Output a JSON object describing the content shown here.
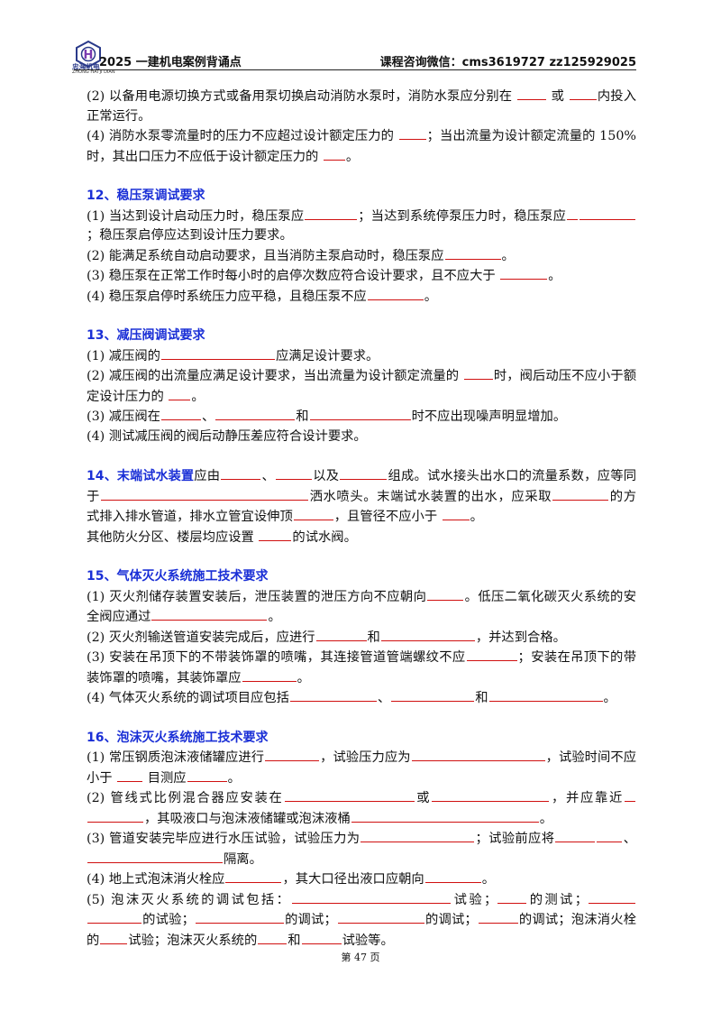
{
  "header": {
    "logo_text": "忠海机电",
    "logo_sub": "ZHONG HAI JI DIAN",
    "title": "2025 一建机电案例背诵点",
    "contact": "课程咨询微信：cms3619727   zz125929025"
  },
  "content": {
    "s11": {
      "l2a": "(2) 以备用电源切换方式或备用泵切换启动消防水泵时，消防水泵应分别在",
      "l2b": "或",
      "l2c": "内投入正常运行。",
      "l4a": "(4) 消防水泵零流量时的压力不应超过设计额定压力的",
      "l4b": "；当出流量为设计额定流量的 150%时，其出口压力不应低于设计额定压力的",
      "l4c": "。"
    },
    "s12": {
      "title": "12、稳压泵调试要求",
      "l1a": "(1) 当达到设计启动压力时，稳压泵应",
      "l1b": "；当达到系统停泵压力时，稳压泵应",
      "l1c": "；稳压泵启停应达到设计压力要求。",
      "l2a": "(2) 能满足系统自动启动要求，且当消防主泵启动时，稳压泵应",
      "l2b": "。",
      "l3a": "(3) 稳压泵在正常工作时每小时的启停次数应符合设计要求，且不应大于",
      "l3b": "。",
      "l4a": "(4) 稳压泵启停时系统压力应平稳，且稳压泵不应",
      "l4b": "。"
    },
    "s13": {
      "title": "13、减压阀调试要求",
      "l1a": "(1) 减压阀的",
      "l1b": "应满足设计要求。",
      "l2a": "(2) 减压阀的出流量应满足设计要求，当出流量为设计额定流量的",
      "l2b": "时，阀后动压不应小于额定设计压力的",
      "l2c": "。",
      "l3a": "(3) 减压阀在",
      "l3b": "、",
      "l3c": "和",
      "l3d": "时不应出现噪声明显增加。",
      "l4": "(4) 测试减压阀的阀后动静压差应符合设计要求。"
    },
    "s14": {
      "title": "14、末端试水装置",
      "a": "应由",
      "b": "、",
      "c": "以及",
      "d": "组成。试水接头出水口的流量系数，应等同于",
      "e": "洒水喷头。末端试水装置的出水，应采取",
      "f": "的方式排入排水管道，排水立管宜设伸顶",
      "g": "，且管径不应小于",
      "h": "。",
      "i": "其他防火分区、楼层均应设置",
      "j": "的试水阀。"
    },
    "s15": {
      "title": "15、气体灭火系统施工技术要求",
      "l1a": "(1) 灭火剂储存装置安装后，泄压装置的泄压方向不应朝向",
      "l1b": "。低压二氧化碳灭火系统的安全阀应通过",
      "l1c": "。",
      "l2a": "(2) 灭火剂输送管道安装完成后，应进行",
      "l2b": "和",
      "l2c": "，并达到合格。",
      "l3a": "(3) 安装在吊顶下的不带装饰罩的喷嘴，其连接管道管端螺纹不应",
      "l3b": "；安装在吊顶下的带装饰罩的喷嘴，其装饰罩应",
      "l3c": "。",
      "l4a": "(4) 气体灭火系统的调试项目应包括",
      "l4b": "、",
      "l4c": "和",
      "l4d": "。"
    },
    "s16": {
      "title": "16、泡沫灭火系统施工技术要求",
      "l1a": "(1) 常压钢质泡沫液储罐应进行",
      "l1b": "，试验压力应为",
      "l1c": "，试验时间不应小于",
      "l1d": "目测应",
      "l1e": "。",
      "l2a": "(2) 管线式比例混合器应安装在",
      "l2b": "或",
      "l2c": "，并应靠近",
      "l2d": "，其吸液口与泡沫液储罐或泡沫液桶",
      "l2e": "。",
      "l3a": "(3) 管道安装完毕应进行水压试验，试验压力为",
      "l3b": "；试验前应将",
      "l3c": "、",
      "l3d": "隔离。",
      "l4a": "(4) 地上式泡沫消火栓应",
      "l4b": "，其大口径出液口应朝向",
      "l4c": "。",
      "l5a": "(5) 泡沫灭火系统的调试包括：",
      "l5b": "试验；",
      "l5c": "的测试；",
      "l5d": "的试验；",
      "l5e": "的调试；",
      "l5f": "的调试；",
      "l5g": "的调试；泡沫消火栓的",
      "l5h": "试验；泡沫灭火系统的",
      "l5i": "和",
      "l5j": "试验等。"
    }
  },
  "footer": {
    "page": "第 47 页"
  }
}
